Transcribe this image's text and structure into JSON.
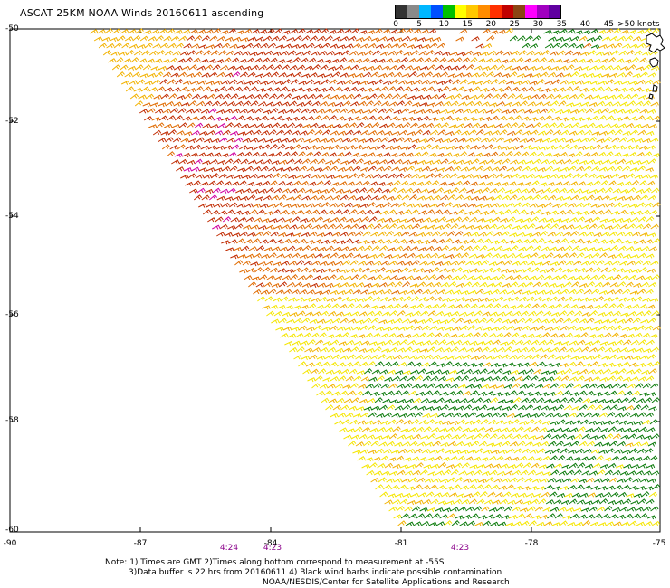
{
  "title": "ASCAT 25KM NOAA Winds 20160611 ascending",
  "colorbar": {
    "ticks": [
      "0",
      "5",
      "10",
      "15",
      "20",
      "25",
      "30",
      "35",
      "40",
      "45",
      ">50 knots"
    ],
    "colors": [
      "#333333",
      "#8a8a8a",
      "#00b7ff",
      "#0050ff",
      "#00c000",
      "#ffff00",
      "#ffc800",
      "#ff8c00",
      "#ff3000",
      "#c00000",
      "#8b4513",
      "#ff00ff",
      "#a000c0",
      "#6000a0"
    ]
  },
  "axes": {
    "lat_labels": [
      "-50",
      "-52",
      "-54",
      "-56",
      "-58",
      "-60"
    ],
    "lon_labels": [
      "-90",
      "-87",
      "-84",
      "-81",
      "-78",
      "-75"
    ]
  },
  "times": [
    "4:24",
    "4:23",
    "4:23"
  ],
  "notes": [
    "Note: 1) Times are GMT 2)Times along bottom correspond to measurement at -55S",
    "3)Data buffer is 22 hrs from 20160611 4) Black wind barbs indicate possible contamination",
    "NOAA/NESDIS/Center for Satellite Applications and Research"
  ],
  "palette": {
    "green": "#0a7a0a",
    "yellow": "#f5e600",
    "light_orange": "#f2b200",
    "orange": "#e06b00",
    "red": "#c02a00",
    "magenta": "#d000a0"
  }
}
